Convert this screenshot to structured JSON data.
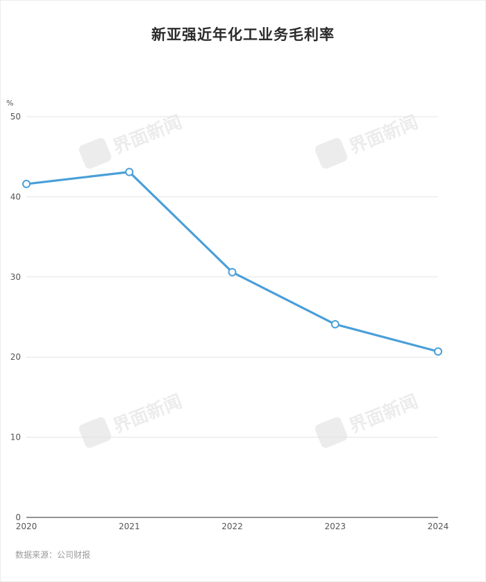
{
  "title": "新亚强近年化工业务毛利率",
  "source": "数据来源：公司财报",
  "watermark": "界面新闻",
  "chart_data": {
    "type": "line",
    "title": "新亚强近年化工业务毛利率",
    "xlabel": "",
    "ylabel": "%",
    "x": [
      "2020",
      "2021",
      "2022",
      "2023",
      "2024"
    ],
    "series": [
      {
        "values": [
          41.6,
          43.1,
          30.6,
          24.1,
          20.7
        ]
      }
    ],
    "ylim": [
      0,
      50
    ],
    "yticks": [
      0,
      10,
      20,
      30,
      40,
      50
    ],
    "grid": true,
    "legend": "none",
    "colors": {
      "line": "#4a9fd8",
      "grid": "#e3e3e3",
      "axis": "#555555",
      "tick_text": "#555555"
    }
  }
}
